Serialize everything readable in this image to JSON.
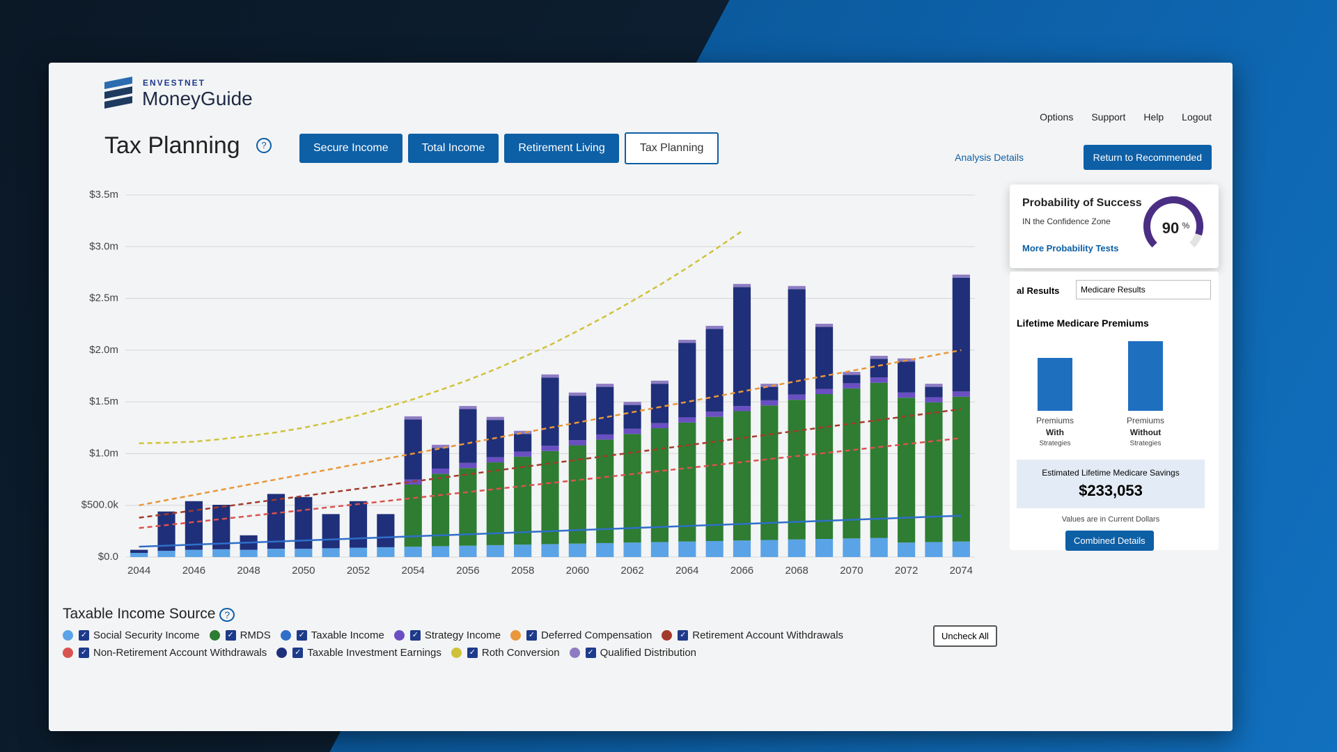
{
  "header": {
    "brand_top": "ENVESTNET",
    "brand": "MoneyGuide",
    "title": "Tax Planning",
    "help": "?",
    "tabs": [
      "Secure Income",
      "Total Income",
      "Retirement Living",
      "Tax Planning"
    ],
    "nav": [
      "Options",
      "Support",
      "Help",
      "Logout"
    ],
    "analysis": "Analysis Details",
    "return": "Return to Recommended"
  },
  "chart_data": {
    "type": "bar",
    "legend_title": "Taxable Income Source",
    "legend_help": "?",
    "uncheck": "Uncheck All",
    "categories": [
      "2044",
      null,
      "2046",
      null,
      "2048",
      null,
      "2050",
      null,
      "2052",
      null,
      "2054",
      null,
      "2056",
      null,
      "2058",
      null,
      "2060",
      null,
      "2062",
      null,
      "2064",
      null,
      "2066",
      null,
      "2068",
      null,
      "2070",
      null,
      "2072",
      null,
      "2074"
    ],
    "ylim": [
      0,
      3500000
    ],
    "yticks": [
      {
        "value": 0,
        "label": "$0.0"
      },
      {
        "value": 500000,
        "label": "$500.0k"
      },
      {
        "value": 1000000,
        "label": "$1.0m"
      },
      {
        "value": 1500000,
        "label": "$1.5m"
      },
      {
        "value": 2000000,
        "label": "$2.0m"
      },
      {
        "value": 2500000,
        "label": "$2.5m"
      },
      {
        "value": 3000000,
        "label": "$3.0m"
      },
      {
        "value": 3500000,
        "label": "$3.5m"
      }
    ],
    "grid": true,
    "series": [
      {
        "name": "Social Security Income",
        "color": "#5aa3e6",
        "kind": "bar",
        "values": [
          40000,
          60000,
          70000,
          75000,
          70000,
          80000,
          80000,
          85000,
          90000,
          95000,
          100000,
          105000,
          110000,
          115000,
          120000,
          125000,
          130000,
          135000,
          140000,
          145000,
          150000,
          155000,
          160000,
          165000,
          170000,
          175000,
          180000,
          185000,
          140000,
          145000,
          150000
        ]
      },
      {
        "name": "RMDS",
        "color": "#2e7d32",
        "kind": "bar",
        "values": [
          0,
          0,
          0,
          0,
          0,
          0,
          0,
          0,
          0,
          0,
          600000,
          700000,
          750000,
          800000,
          850000,
          900000,
          950000,
          1000000,
          1050000,
          1100000,
          1150000,
          1200000,
          1250000,
          1300000,
          1350000,
          1400000,
          1450000,
          1500000,
          1400000,
          1350000,
          1400000
        ]
      },
      {
        "name": "Taxable Income",
        "color": "#2f6fc9",
        "kind": "line",
        "dash": false,
        "values": [
          100000,
          110000,
          120000,
          130000,
          140000,
          150000,
          160000,
          170000,
          180000,
          190000,
          200000,
          210000,
          220000,
          230000,
          240000,
          250000,
          260000,
          270000,
          280000,
          290000,
          300000,
          310000,
          320000,
          330000,
          340000,
          350000,
          360000,
          370000,
          380000,
          390000,
          400000
        ]
      },
      {
        "name": "Strategy Income",
        "color": "#6a4fc2",
        "kind": "bar",
        "values": [
          0,
          0,
          0,
          0,
          0,
          0,
          0,
          0,
          0,
          0,
          50000,
          50000,
          50000,
          50000,
          50000,
          50000,
          50000,
          50000,
          50000,
          50000,
          50000,
          50000,
          50000,
          50000,
          50000,
          50000,
          50000,
          50000,
          50000,
          50000,
          50000
        ]
      },
      {
        "name": "Deferred Compensation",
        "color": "#e8973a",
        "kind": "line",
        "dash": true,
        "values": [
          500000,
          550000,
          600000,
          650000,
          700000,
          750000,
          800000,
          850000,
          900000,
          950000,
          1000000,
          1050000,
          1100000,
          1150000,
          1200000,
          1250000,
          1300000,
          1350000,
          1400000,
          1450000,
          1500000,
          1550000,
          1600000,
          1650000,
          1700000,
          1750000,
          1800000,
          1850000,
          1900000,
          1950000,
          2000000
        ]
      },
      {
        "name": "Retirement Account Withdrawals",
        "color": "#a23b2a",
        "kind": "line",
        "dash": true,
        "values": [
          380000,
          415000,
          450000,
          485000,
          520000,
          555000,
          590000,
          625000,
          660000,
          695000,
          730000,
          765000,
          800000,
          835000,
          870000,
          905000,
          940000,
          975000,
          1010000,
          1045000,
          1080000,
          1115000,
          1150000,
          1185000,
          1220000,
          1255000,
          1290000,
          1325000,
          1360000,
          1395000,
          1430000
        ]
      },
      {
        "name": "Non-Retirement Account Withdrawals",
        "color": "#d9534f",
        "kind": "line",
        "dash": true,
        "values": [
          280000,
          309000,
          338000,
          367000,
          396000,
          425000,
          454000,
          483000,
          512000,
          541000,
          570000,
          599000,
          628000,
          657000,
          686000,
          715000,
          744000,
          773000,
          802000,
          831000,
          860000,
          889000,
          918000,
          947000,
          976000,
          1005000,
          1034000,
          1063000,
          1092000,
          1121000,
          1150000
        ]
      },
      {
        "name": "Taxable Investment Earnings",
        "color": "#1f2f7a",
        "kind": "bar",
        "values": [
          30000,
          380000,
          470000,
          430000,
          140000,
          530000,
          500000,
          330000,
          450000,
          320000,
          580000,
          200000,
          520000,
          360000,
          170000,
          660000,
          430000,
          460000,
          230000,
          380000,
          720000,
          800000,
          1150000,
          130000,
          1020000,
          600000,
          80000,
          180000,
          300000,
          100000,
          1100000
        ]
      },
      {
        "name": "Roth Conversion",
        "color": "#cfc23a",
        "kind": "line",
        "dash": true,
        "values": [
          1100000,
          1105000,
          1115000,
          1140000,
          1170000,
          1205000,
          1250000,
          1305000,
          1370000,
          1445000,
          1525000,
          1615000,
          1710000,
          1815000,
          1930000,
          2050000,
          2185000,
          2325000,
          2475000,
          2630000,
          2795000,
          2970000,
          3150000,
          null,
          null,
          null,
          null,
          null,
          null,
          null,
          null
        ]
      },
      {
        "name": "Qualified Distribution",
        "color": "#8e7cc3",
        "kind": "bar",
        "values": [
          0,
          0,
          0,
          0,
          0,
          0,
          0,
          0,
          0,
          0,
          30000,
          30000,
          30000,
          30000,
          30000,
          30000,
          30000,
          30000,
          30000,
          30000,
          30000,
          30000,
          30000,
          30000,
          30000,
          30000,
          30000,
          30000,
          30000,
          30000,
          30000
        ]
      }
    ]
  },
  "probability": {
    "title": "Probability of Success",
    "zone": "IN the Confidence Zone",
    "value": 90,
    "unit": "%",
    "link": "More Probability Tests"
  },
  "results": {
    "tab": "al Results",
    "select": "Medicare Results"
  },
  "medicare": {
    "title": "Lifetime Medicare Premiums",
    "bars": [
      {
        "top": "Premiums",
        "main": "With",
        "sub": "Strategies",
        "value": 738000
      },
      {
        "top": "Premiums",
        "main": "Without",
        "sub": "Strategies",
        "value": 971053
      }
    ],
    "savings_label": "Estimated Lifetime Medicare Savings",
    "savings": "$233,053",
    "note": "Values are in Current Dollars",
    "button": "Combined Details"
  }
}
